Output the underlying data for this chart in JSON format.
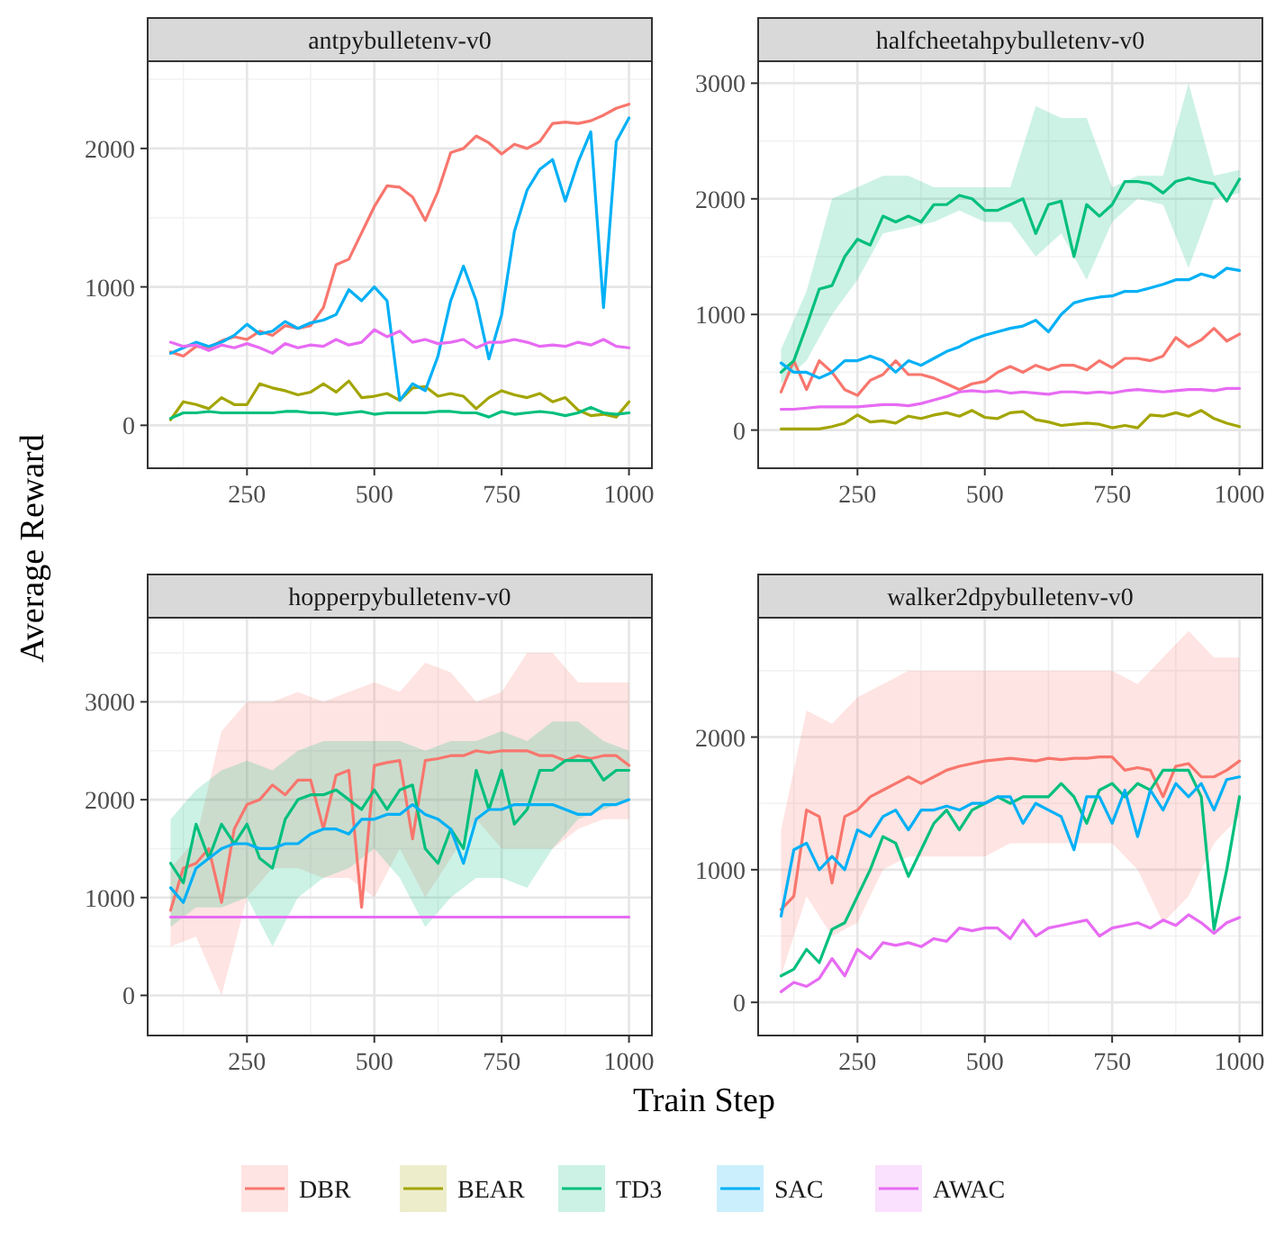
{
  "chart_data": [
    {
      "type": "line",
      "title": "antpybulletenv-v0",
      "ylabel": "Average Reward",
      "legend": "bottom",
      "grid": true,
      "xlim": [
        55,
        1045
      ],
      "ylim": [
        -310,
        2630
      ],
      "xticks": [
        250,
        500,
        750,
        1000
      ],
      "yticks": [
        0,
        1000,
        2000
      ],
      "x": [
        100,
        125,
        150,
        175,
        200,
        225,
        250,
        275,
        300,
        325,
        350,
        375,
        400,
        425,
        450,
        475,
        500,
        525,
        550,
        575,
        600,
        625,
        650,
        675,
        700,
        725,
        750,
        775,
        800,
        825,
        850,
        875,
        900,
        925,
        950,
        975,
        1000
      ],
      "series": [
        {
          "name": "DBR",
          "color": "#f8766d",
          "values": [
            530,
            500,
            570,
            560,
            610,
            640,
            620,
            680,
            650,
            720,
            700,
            720,
            850,
            1160,
            1200,
            1390,
            1580,
            1730,
            1720,
            1650,
            1480,
            1690,
            1970,
            2000,
            2090,
            2040,
            1960,
            2030,
            2000,
            2050,
            2180,
            2190,
            2180,
            2200,
            2240,
            2290,
            2320
          ]
        },
        {
          "name": "BEAR",
          "color": "#a3a500",
          "values": [
            40,
            170,
            150,
            120,
            200,
            150,
            150,
            300,
            270,
            250,
            220,
            240,
            300,
            240,
            320,
            200,
            210,
            230,
            180,
            270,
            280,
            210,
            230,
            210,
            120,
            200,
            250,
            220,
            200,
            230,
            170,
            200,
            110,
            70,
            80,
            60,
            170
          ]
        },
        {
          "name": "TD3",
          "color": "#00bf7d",
          "values": [
            50,
            90,
            90,
            100,
            90,
            90,
            90,
            90,
            90,
            100,
            100,
            90,
            90,
            80,
            90,
            100,
            80,
            90,
            90,
            90,
            90,
            100,
            100,
            90,
            90,
            60,
            100,
            80,
            90,
            100,
            90,
            70,
            90,
            130,
            90,
            80,
            90
          ]
        },
        {
          "name": "SAC",
          "color": "#00b0f6",
          "values": [
            520,
            560,
            600,
            570,
            600,
            650,
            730,
            660,
            680,
            750,
            700,
            740,
            760,
            800,
            980,
            900,
            1000,
            900,
            180,
            300,
            250,
            500,
            900,
            1150,
            900,
            480,
            800,
            1400,
            1700,
            1850,
            1920,
            1620,
            1900,
            2120,
            850,
            2050,
            2220
          ]
        },
        {
          "name": "AWAC",
          "color": "#e76bf3",
          "values": [
            600,
            570,
            580,
            540,
            580,
            560,
            590,
            560,
            520,
            590,
            560,
            580,
            570,
            620,
            580,
            600,
            690,
            640,
            680,
            600,
            620,
            590,
            600,
            620,
            560,
            600,
            600,
            620,
            600,
            570,
            580,
            570,
            600,
            580,
            620,
            570,
            560
          ]
        }
      ]
    },
    {
      "type": "line",
      "title": "halfcheetahpybulletenv-v0",
      "grid": true,
      "xlim": [
        55,
        1045
      ],
      "ylim": [
        -330,
        3190
      ],
      "xticks": [
        250,
        500,
        750,
        1000
      ],
      "yticks": [
        0,
        1000,
        2000,
        3000
      ],
      "x": [
        100,
        125,
        150,
        175,
        200,
        225,
        250,
        275,
        300,
        325,
        350,
        375,
        400,
        425,
        450,
        475,
        500,
        525,
        550,
        575,
        600,
        625,
        650,
        675,
        700,
        725,
        750,
        775,
        800,
        825,
        850,
        875,
        900,
        925,
        950,
        975,
        1000
      ],
      "series": [
        {
          "color": "#f8766d",
          "values": [
            330,
            600,
            350,
            600,
            500,
            350,
            300,
            430,
            480,
            600,
            480,
            480,
            450,
            400,
            350,
            400,
            420,
            500,
            550,
            500,
            560,
            520,
            560,
            560,
            520,
            600,
            540,
            620,
            620,
            600,
            640,
            800,
            720,
            780,
            880,
            770,
            830
          ]
        },
        {
          "color": "#a3a500",
          "values": [
            10,
            10,
            10,
            10,
            30,
            60,
            130,
            70,
            80,
            60,
            120,
            100,
            130,
            150,
            120,
            170,
            110,
            100,
            150,
            160,
            90,
            70,
            40,
            50,
            60,
            50,
            20,
            40,
            20,
            130,
            120,
            150,
            120,
            170,
            100,
            60,
            30
          ]
        },
        {
          "color": "#00bf7d",
          "values": [
            500,
            600,
            900,
            1220,
            1250,
            1500,
            1650,
            1600,
            1850,
            1800,
            1850,
            1800,
            1950,
            1950,
            2030,
            2000,
            1900,
            1900,
            1950,
            2000,
            1700,
            1950,
            1980,
            1500,
            1950,
            1850,
            1950,
            2150,
            2150,
            2130,
            2050,
            2150,
            2180,
            2150,
            2130,
            1980,
            2170
          ],
          "lower": [
            400,
            null,
            600,
            null,
            1000,
            null,
            1300,
            null,
            1700,
            null,
            1750,
            null,
            1800,
            null,
            1900,
            null,
            1800,
            null,
            1800,
            null,
            1500,
            null,
            1700,
            null,
            1300,
            null,
            1800,
            null,
            2000,
            null,
            1950,
            null,
            1400,
            null,
            2000,
            null,
            2050
          ],
          "upper": [
            700,
            null,
            1200,
            null,
            2000,
            null,
            2100,
            null,
            2200,
            null,
            2200,
            null,
            2100,
            null,
            2100,
            null,
            2100,
            null,
            2100,
            null,
            2800,
            null,
            2700,
            null,
            2700,
            null,
            2100,
            null,
            2200,
            null,
            2200,
            null,
            3000,
            null,
            2200,
            null,
            2250
          ]
        },
        {
          "color": "#00b0f6",
          "values": [
            580,
            500,
            500,
            450,
            500,
            600,
            600,
            640,
            600,
            500,
            600,
            560,
            620,
            680,
            720,
            780,
            820,
            850,
            880,
            900,
            950,
            850,
            1000,
            1100,
            1130,
            1150,
            1160,
            1200,
            1200,
            1230,
            1260,
            1300,
            1300,
            1350,
            1320,
            1400,
            1380
          ]
        },
        {
          "color": "#e76bf3",
          "values": [
            180,
            180,
            190,
            200,
            200,
            200,
            200,
            210,
            220,
            220,
            210,
            230,
            260,
            290,
            330,
            340,
            330,
            340,
            320,
            330,
            320,
            310,
            330,
            330,
            320,
            330,
            320,
            340,
            350,
            340,
            330,
            340,
            350,
            350,
            340,
            360,
            360
          ]
        }
      ]
    },
    {
      "type": "line",
      "title": "hopperpybulletenv-v0",
      "xlabel": "Train Step",
      "grid": true,
      "xlim": [
        55,
        1045
      ],
      "ylim": [
        -410,
        3860
      ],
      "xticks": [
        250,
        500,
        750,
        1000
      ],
      "yticks": [
        0,
        1000,
        2000,
        3000
      ],
      "x": [
        100,
        125,
        150,
        175,
        200,
        225,
        250,
        275,
        300,
        325,
        350,
        375,
        400,
        425,
        450,
        475,
        500,
        525,
        550,
        575,
        600,
        625,
        650,
        675,
        700,
        725,
        750,
        775,
        800,
        825,
        850,
        875,
        900,
        925,
        950,
        975,
        1000
      ],
      "series": [
        {
          "color": "#f8766d",
          "values": [
            870,
            1300,
            1350,
            1500,
            950,
            1700,
            1950,
            2000,
            2150,
            2050,
            2200,
            2200,
            1700,
            2250,
            2300,
            900,
            2350,
            2380,
            2400,
            1600,
            2400,
            2420,
            2450,
            2450,
            2500,
            2480,
            2500,
            2500,
            2500,
            2450,
            2450,
            2400,
            2450,
            2420,
            2450,
            2450,
            2350
          ],
          "lower": [
            500,
            null,
            600,
            null,
            0,
            null,
            1000,
            null,
            1300,
            null,
            1300,
            null,
            1200,
            null,
            1200,
            null,
            1000,
            null,
            1500,
            null,
            1000,
            null,
            1400,
            null,
            1800,
            null,
            1500,
            null,
            1500,
            null,
            1500,
            null,
            1700,
            null,
            1800,
            null,
            1800
          ],
          "upper": [
            1300,
            null,
            1600,
            null,
            2700,
            null,
            3000,
            null,
            3000,
            null,
            3100,
            null,
            3000,
            null,
            3100,
            null,
            3200,
            null,
            3100,
            null,
            3400,
            null,
            3300,
            null,
            3000,
            null,
            3100,
            null,
            3500,
            null,
            3500,
            null,
            3200,
            null,
            3200,
            null,
            3200
          ]
        },
        {
          "color": "#00bf7d",
          "values": [
            1350,
            1150,
            1750,
            1400,
            1750,
            1550,
            1750,
            1400,
            1300,
            1800,
            2000,
            2050,
            2050,
            2100,
            2000,
            1900,
            2100,
            1900,
            2100,
            2150,
            1500,
            1350,
            1700,
            1500,
            2300,
            1900,
            2300,
            1750,
            1900,
            2300,
            2300,
            2400,
            2400,
            2400,
            2200,
            2300,
            2300
          ],
          "lower": [
            700,
            null,
            900,
            null,
            900,
            null,
            1000,
            null,
            500,
            null,
            1000,
            null,
            1200,
            null,
            1300,
            null,
            1500,
            null,
            1200,
            null,
            700,
            null,
            1000,
            null,
            1200,
            null,
            1200,
            null,
            1100,
            null,
            1500,
            null,
            1800,
            null,
            1900,
            null,
            2000
          ],
          "upper": [
            1800,
            null,
            2100,
            null,
            2300,
            null,
            2400,
            null,
            2300,
            null,
            2500,
            null,
            2600,
            null,
            2600,
            null,
            2600,
            null,
            2600,
            null,
            2500,
            null,
            2600,
            null,
            2600,
            null,
            2700,
            null,
            2600,
            null,
            2800,
            null,
            2800,
            null,
            2600,
            null,
            2500
          ]
        },
        {
          "color": "#00b0f6",
          "values": [
            1100,
            950,
            1300,
            1400,
            1500,
            1550,
            1550,
            1500,
            1500,
            1550,
            1550,
            1650,
            1700,
            1700,
            1650,
            1800,
            1800,
            1850,
            1850,
            1950,
            1850,
            1800,
            1700,
            1350,
            1800,
            1900,
            1900,
            1950,
            1950,
            1950,
            1950,
            1900,
            1850,
            1850,
            1950,
            1950,
            2000
          ]
        },
        {
          "color": "#e76bf3",
          "values": [
            800,
            800,
            800,
            800,
            800,
            800,
            800,
            800,
            800,
            800,
            800,
            800,
            800,
            800,
            800,
            800,
            800,
            800,
            800,
            800,
            800,
            800,
            800,
            800,
            800,
            800,
            800,
            800,
            800,
            800,
            800,
            800,
            800,
            800,
            800,
            800,
            800
          ]
        }
      ]
    },
    {
      "type": "line",
      "title": "walker2dpybulletenv-v0",
      "grid": true,
      "xlim": [
        55,
        1045
      ],
      "ylim": [
        -250,
        2900
      ],
      "xticks": [
        250,
        500,
        750,
        1000
      ],
      "yticks": [
        0,
        1000,
        2000
      ],
      "x": [
        100,
        125,
        150,
        175,
        200,
        225,
        250,
        275,
        300,
        325,
        350,
        375,
        400,
        425,
        450,
        475,
        500,
        525,
        550,
        575,
        600,
        625,
        650,
        675,
        700,
        725,
        750,
        775,
        800,
        825,
        850,
        875,
        900,
        925,
        950,
        975,
        1000
      ],
      "series": [
        {
          "color": "#f8766d",
          "values": [
            700,
            800,
            1450,
            1400,
            900,
            1400,
            1450,
            1550,
            1600,
            1650,
            1700,
            1650,
            1700,
            1750,
            1780,
            1800,
            1820,
            1830,
            1840,
            1830,
            1820,
            1840,
            1830,
            1840,
            1840,
            1850,
            1850,
            1750,
            1770,
            1750,
            1550,
            1780,
            1800,
            1700,
            1700,
            1750,
            1820
          ],
          "lower": [
            200,
            null,
            800,
            null,
            500,
            null,
            600,
            null,
            1000,
            null,
            1100,
            null,
            1100,
            null,
            1100,
            null,
            1100,
            null,
            1200,
            null,
            1200,
            null,
            1200,
            null,
            1200,
            null,
            1200,
            null,
            1000,
            null,
            600,
            null,
            800,
            null,
            1200,
            null,
            1400
          ],
          "upper": [
            1300,
            null,
            2200,
            null,
            2100,
            null,
            2300,
            null,
            2400,
            null,
            2500,
            null,
            2500,
            null,
            2500,
            null,
            2500,
            null,
            2500,
            null,
            2500,
            null,
            2500,
            null,
            2500,
            null,
            2500,
            null,
            2400,
            null,
            2600,
            null,
            2800,
            null,
            2600,
            null,
            2600
          ]
        },
        {
          "color": "#00bf7d",
          "values": [
            200,
            250,
            400,
            300,
            550,
            600,
            800,
            1000,
            1250,
            1200,
            950,
            1150,
            1350,
            1450,
            1300,
            1450,
            1500,
            1550,
            1500,
            1550,
            1550,
            1550,
            1650,
            1550,
            1350,
            1600,
            1650,
            1550,
            1650,
            1600,
            1750,
            1750,
            1750,
            1550,
            550,
            1000,
            1550
          ]
        },
        {
          "color": "#00b0f6",
          "values": [
            650,
            1150,
            1200,
            1000,
            1100,
            1000,
            1300,
            1250,
            1400,
            1450,
            1300,
            1450,
            1450,
            1480,
            1450,
            1500,
            1500,
            1550,
            1550,
            1350,
            1500,
            1450,
            1400,
            1150,
            1550,
            1550,
            1350,
            1600,
            1250,
            1600,
            1450,
            1650,
            1550,
            1650,
            1450,
            1680,
            1700
          ]
        },
        {
          "color": "#e76bf3",
          "values": [
            80,
            150,
            120,
            180,
            330,
            200,
            400,
            330,
            450,
            430,
            450,
            420,
            480,
            460,
            560,
            540,
            560,
            560,
            480,
            620,
            500,
            560,
            580,
            600,
            620,
            500,
            560,
            580,
            600,
            560,
            620,
            580,
            660,
            600,
            520,
            600,
            640
          ]
        }
      ]
    }
  ]
}
